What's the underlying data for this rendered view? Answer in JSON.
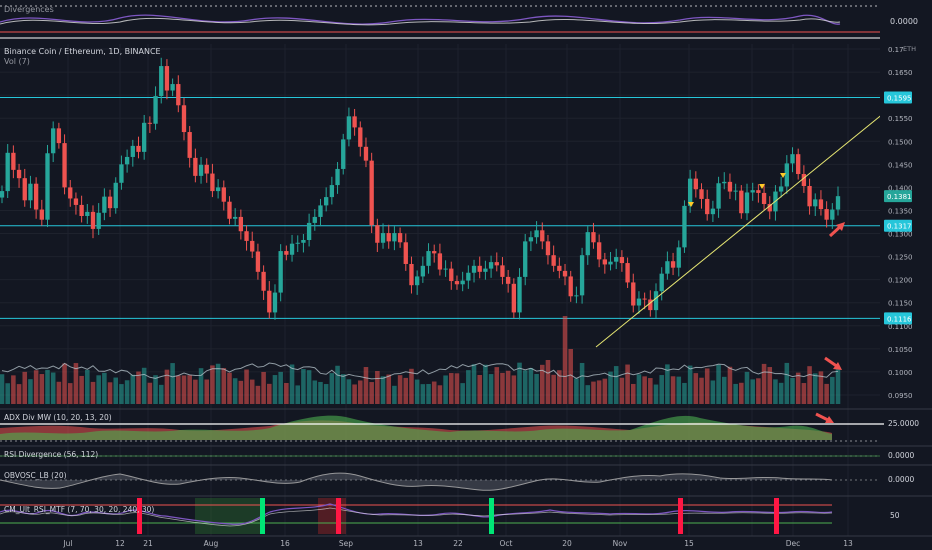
{
  "header": {
    "title": "Binance Coin / Ethereum, 1D, BINANCE",
    "vol_label": "Vol (7)",
    "currency": "ETH"
  },
  "top_pane": {
    "label": "Divergences",
    "value": "0.0000"
  },
  "price_scale": {
    "ticks": [
      "0.17",
      "0.1650",
      "0.1600",
      "0.1550",
      "0.1500",
      "0.1450",
      "0.1400",
      "0.1350",
      "0.1300",
      "0.1250",
      "0.1200",
      "0.1150",
      "0.1100",
      "0.1050",
      "0.1000",
      "0.0950"
    ],
    "badges": [
      {
        "text": "0.1595",
        "value": 0.1595,
        "color": "#26c6da"
      },
      {
        "text": "0.1381",
        "value": 0.1381,
        "color": "#26a69a"
      },
      {
        "text": "0.1317",
        "value": 0.1317,
        "color": "#26c6da"
      },
      {
        "text": "0.1116",
        "value": 0.1116,
        "color": "#26c6da"
      }
    ]
  },
  "x_axis": {
    "labels": [
      "Jul",
      "12",
      "21",
      "Aug",
      "16",
      "Sep",
      "13",
      "22",
      "Oct",
      "20",
      "Nov",
      "15",
      "Dec",
      "13"
    ]
  },
  "indicators": [
    {
      "name": "ADX Div MW (10, 20, 13, 20)",
      "value": "25.0000"
    },
    {
      "name": "RSI Divergence (56, 112)",
      "value": "0.0000"
    },
    {
      "name": "OBVOSC_LB (20)",
      "value": "0.0000"
    },
    {
      "name": "CM_Ult_RSI_MTF (7, 70, 30, 20, 240, 30)",
      "value": "50"
    }
  ],
  "chart_data": {
    "type": "candlestick",
    "title": "Binance Coin / Ethereum, 1D, BINANCE",
    "ylim": [
      0.092,
      0.172
    ],
    "horizontal_levels": [
      0.1595,
      0.1317,
      0.1116
    ],
    "last_price": 0.1381,
    "close": [
      0.1392,
      0.1475,
      0.1438,
      0.142,
      0.1372,
      0.1408,
      0.1352,
      0.133,
      0.1474,
      0.1528,
      0.1496,
      0.14,
      0.1376,
      0.1362,
      0.1338,
      0.1347,
      0.131,
      0.1345,
      0.138,
      0.1355,
      0.141,
      0.145,
      0.1466,
      0.149,
      0.1477,
      0.154,
      0.1538,
      0.1598,
      0.1663,
      0.161,
      0.1624,
      0.1578,
      0.152,
      0.1464,
      0.1425,
      0.1449,
      0.143,
      0.1392,
      0.14,
      0.1369,
      0.1332,
      0.1336,
      0.1305,
      0.1284,
      0.1261,
      0.1217,
      0.1176,
      0.1129,
      0.1172,
      0.1262,
      0.1254,
      0.1278,
      0.128,
      0.1286,
      0.1323,
      0.1336,
      0.1361,
      0.1379,
      0.1405,
      0.144,
      0.1504,
      0.1554,
      0.153,
      0.1488,
      0.1458,
      0.1318,
      0.128,
      0.1301,
      0.1283,
      0.1301,
      0.1281,
      0.1234,
      0.1188,
      0.1207,
      0.123,
      0.1262,
      0.1257,
      0.1222,
      0.1224,
      0.1197,
      0.119,
      0.1198,
      0.1215,
      0.123,
      0.1217,
      0.1224,
      0.1238,
      0.1231,
      0.1206,
      0.1191,
      0.1129,
      0.1206,
      0.1283,
      0.1292,
      0.1307,
      0.1283,
      0.1253,
      0.123,
      0.1219,
      0.1207,
      0.1164,
      0.1166,
      0.1253,
      0.1303,
      0.1281,
      0.1244,
      0.1233,
      0.1239,
      0.1249,
      0.1236,
      0.1194,
      0.1144,
      0.1159,
      0.1157,
      0.1134,
      0.1175,
      0.1213,
      0.124,
      0.1226,
      0.127,
      0.136,
      0.1419,
      0.1396,
      0.1375,
      0.1342,
      0.1354,
      0.1409,
      0.1412,
      0.1391,
      0.1393,
      0.1344,
      0.1389,
      0.1394,
      0.1388,
      0.1364,
      0.1348,
      0.1391,
      0.1402,
      0.1452,
      0.1472,
      0.1429,
      0.1403,
      0.1359,
      0.1374,
      0.1353,
      0.133,
      0.1352,
      0.1381
    ],
    "open": [
      0.1378,
      0.1392,
      0.1475,
      0.1438,
      0.142,
      0.1372,
      0.1408,
      0.1352,
      0.133,
      0.1474,
      0.1528,
      0.1496,
      0.14,
      0.1376,
      0.1362,
      0.1338,
      0.1347,
      0.131,
      0.1345,
      0.138,
      0.1355,
      0.141,
      0.145,
      0.1466,
      0.149,
      0.1477,
      0.154,
      0.1538,
      0.1598,
      0.1663,
      0.161,
      0.1624,
      0.1578,
      0.152,
      0.1464,
      0.1425,
      0.1449,
      0.143,
      0.1392,
      0.14,
      0.1369,
      0.1332,
      0.1336,
      0.1305,
      0.1284,
      0.1261,
      0.1217,
      0.1176,
      0.1129,
      0.1172,
      0.1262,
      0.1254,
      0.1278,
      0.128,
      0.1286,
      0.1323,
      0.1336,
      0.1361,
      0.1379,
      0.1405,
      0.144,
      0.1504,
      0.1554,
      0.153,
      0.1488,
      0.1458,
      0.1318,
      0.128,
      0.1301,
      0.1283,
      0.1301,
      0.1281,
      0.1234,
      0.1188,
      0.1207,
      0.123,
      0.1262,
      0.1257,
      0.1222,
      0.1224,
      0.1197,
      0.119,
      0.1198,
      0.1215,
      0.123,
      0.1217,
      0.1224,
      0.1238,
      0.1231,
      0.1206,
      0.1191,
      0.1129,
      0.1206,
      0.1283,
      0.1292,
      0.1307,
      0.1283,
      0.1253,
      0.123,
      0.1219,
      0.1207,
      0.1164,
      0.1166,
      0.1253,
      0.1303,
      0.1281,
      0.1244,
      0.1233,
      0.1239,
      0.1249,
      0.1236,
      0.1194,
      0.1144,
      0.1159,
      0.1157,
      0.1134,
      0.1175,
      0.1213,
      0.124,
      0.1226,
      0.127,
      0.136,
      0.1419,
      0.1396,
      0.1375,
      0.1342,
      0.1354,
      0.1409,
      0.1412,
      0.1391,
      0.1393,
      0.1344,
      0.1389,
      0.1394,
      0.1388,
      0.1364,
      0.1348,
      0.1391,
      0.1402,
      0.1452,
      0.1472,
      0.1429,
      0.1403,
      0.1359,
      0.1374,
      0.1353,
      0.133,
      0.1352
    ]
  }
}
